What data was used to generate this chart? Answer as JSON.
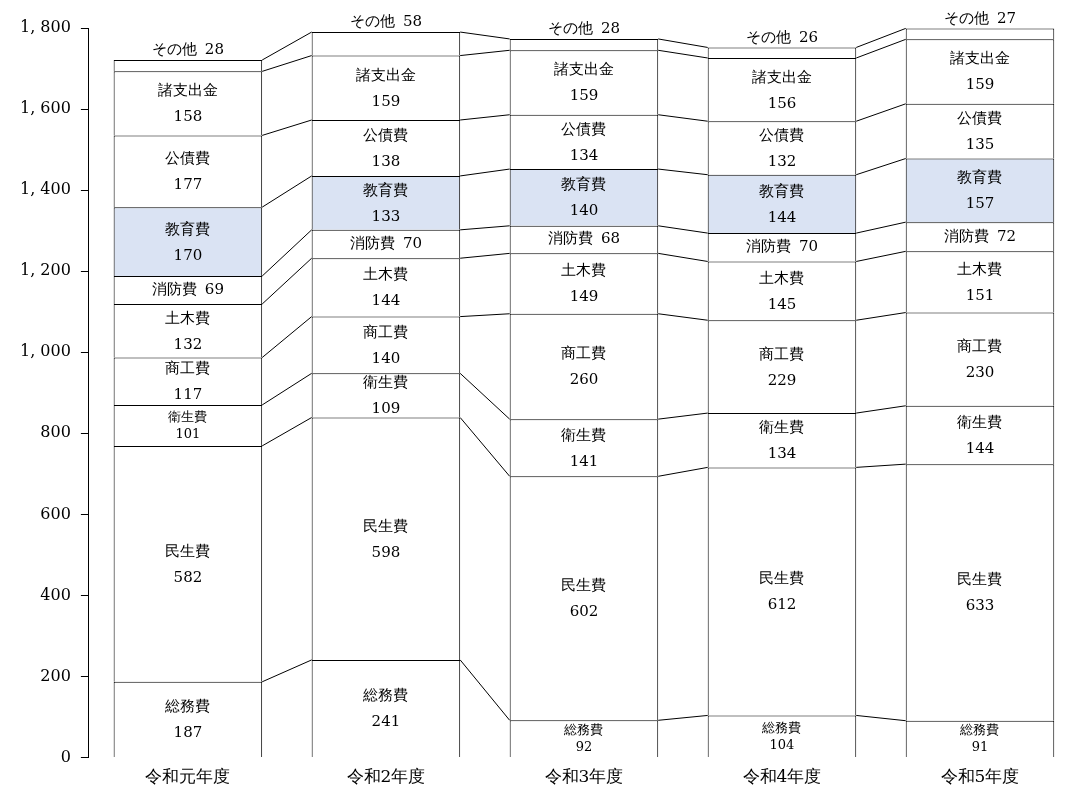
{
  "chart_data": {
    "type": "bar",
    "stacked": true,
    "categories": [
      "令和元年度",
      "令和2年度",
      "令和3年度",
      "令和4年度",
      "令和5年度"
    ],
    "series": [
      {
        "name": "総務費",
        "color": "#ffffff",
        "values": [
          187,
          241,
          92,
          104,
          91
        ]
      },
      {
        "name": "民生費",
        "color": "#ffffff",
        "values": [
          582,
          598,
          602,
          612,
          633
        ]
      },
      {
        "name": "衛生費",
        "color": "#ffffff",
        "values": [
          101,
          109,
          141,
          134,
          144
        ]
      },
      {
        "name": "商工費",
        "color": "#ffffff",
        "values": [
          117,
          140,
          260,
          229,
          230
        ]
      },
      {
        "name": "土木費",
        "color": "#ffffff",
        "values": [
          132,
          144,
          149,
          145,
          151
        ]
      },
      {
        "name": "消防費",
        "color": "#ffffff",
        "values": [
          69,
          70,
          68,
          70,
          72
        ]
      },
      {
        "name": "教育費",
        "color": "#dae3f3",
        "values": [
          170,
          133,
          140,
          144,
          157
        ]
      },
      {
        "name": "公債費",
        "color": "#ffffff",
        "values": [
          177,
          138,
          134,
          132,
          135
        ]
      },
      {
        "name": "諸支出金",
        "color": "#ffffff",
        "values": [
          158,
          159,
          159,
          156,
          159
        ]
      },
      {
        "name": "その他",
        "color": "#ffffff",
        "values": [
          28,
          58,
          28,
          26,
          27
        ]
      }
    ],
    "ylim": [
      0,
      1800
    ],
    "yticks": [
      0,
      200,
      400,
      600,
      800,
      {
        "value": 1000,
        "label": "1, 000"
      },
      {
        "value": 1200,
        "label": "1, 200"
      },
      {
        "value": 1400,
        "label": "1, 400"
      },
      {
        "value": 1600,
        "label": "1, 600"
      },
      {
        "value": 1800,
        "label": "1, 800"
      }
    ],
    "grid": false,
    "legend": false,
    "data_labels": true
  }
}
